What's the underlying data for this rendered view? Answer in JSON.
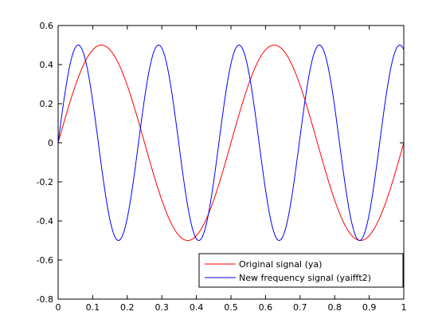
{
  "figure": {
    "background": "#ffffff"
  },
  "chart_data": {
    "type": "line",
    "title": "",
    "xlabel": "",
    "ylabel": "",
    "xlim": [
      0,
      1
    ],
    "ylim": [
      -0.8,
      0.6
    ],
    "xticks": [
      0,
      0.1,
      0.2,
      0.3,
      0.4,
      0.5,
      0.6,
      0.7,
      0.8,
      0.9,
      1
    ],
    "xtick_labels": [
      "0",
      "0.1",
      "0.2",
      "0.3",
      "0.4",
      "0.5",
      "0.6",
      "0.7",
      "0.8",
      "0.9",
      "1"
    ],
    "yticks": [
      -0.8,
      -0.6,
      -0.4,
      -0.2,
      0,
      0.2,
      0.4,
      0.6
    ],
    "ytick_labels": [
      "-0.8",
      "-0.6",
      "-0.4",
      "-0.2",
      "0",
      "0.2",
      "0.4",
      "0.6"
    ],
    "grid": false,
    "legend": {
      "placement": "bottom-right"
    },
    "series": [
      {
        "name": "Original signal (ya)",
        "color": "#ff0000",
        "function": "sine",
        "amplitude": 0.5,
        "frequency": 2,
        "x_start": 0,
        "x_end": 1
      },
      {
        "name": "New frequency signal (yaifft2)",
        "color": "#0000ff",
        "function": "sine",
        "amplitude": 0.5,
        "frequency": 4.3,
        "x_start": 0,
        "x_end": 1
      }
    ]
  }
}
